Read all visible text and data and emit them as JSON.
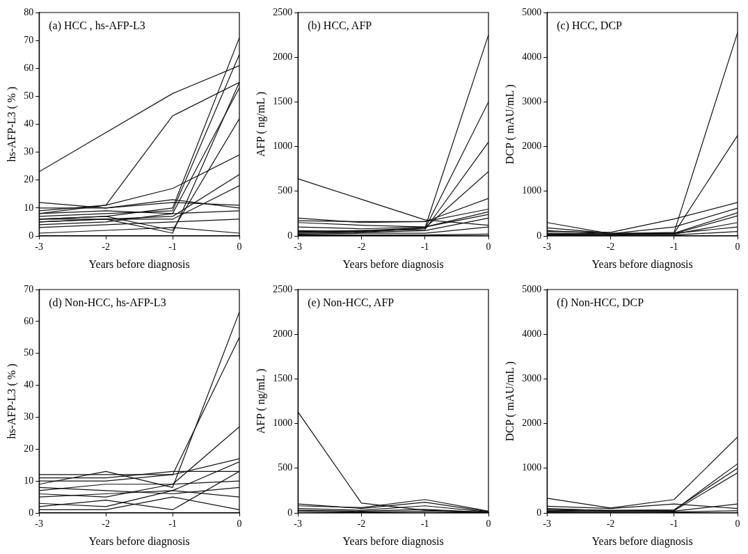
{
  "chart_data": [
    {
      "type": "line",
      "title": "(a) HCC , hs-AFP-L3",
      "xlabel": "Years before diagnosis",
      "ylabel": "hs-AFP-L3 ( % )",
      "x": [
        -3,
        -2,
        -1,
        0
      ],
      "xlim": [
        -3,
        0
      ],
      "xticks": [
        -3,
        -2,
        -1,
        0
      ],
      "ylim": [
        0,
        80
      ],
      "yticks": [
        0,
        10,
        20,
        30,
        40,
        50,
        60,
        70,
        80
      ],
      "grid": false,
      "legend": false,
      "marker": "none",
      "line_style": "solid",
      "series": [
        {
          "color": "#111111",
          "values": [
            9,
            11,
            43,
            55
          ]
        },
        {
          "color": "#111111",
          "values": [
            23,
            37,
            51,
            61
          ]
        },
        {
          "color": "#111111",
          "values": [
            8,
            11,
            17,
            29
          ]
        },
        {
          "color": "#111111",
          "values": [
            6,
            7,
            10,
            71
          ]
        },
        {
          "color": "#111111",
          "values": [
            7,
            8,
            9,
            65
          ]
        },
        {
          "color": "#111111",
          "values": [
            5,
            6,
            1,
            55
          ]
        },
        {
          "color": "#111111",
          "values": [
            4,
            5,
            8,
            53
          ]
        },
        {
          "color": "#111111",
          "values": [
            6,
            7,
            2,
            42
          ]
        },
        {
          "color": "#111111",
          "values": [
            5,
            6,
            7,
            22
          ]
        },
        {
          "color": "#111111",
          "values": [
            6,
            6,
            6,
            18
          ]
        },
        {
          "color": "#111111",
          "values": [
            10,
            10,
            12,
            11
          ]
        },
        {
          "color": "#111111",
          "values": [
            3,
            4,
            5,
            6
          ]
        },
        {
          "color": "#111111",
          "values": [
            8,
            9,
            8,
            9
          ]
        },
        {
          "color": "#111111",
          "values": [
            1,
            2,
            3,
            1
          ]
        },
        {
          "color": "#111111",
          "values": [
            12,
            10,
            13,
            10
          ]
        }
      ]
    },
    {
      "type": "line",
      "title": "(b) HCC, AFP",
      "xlabel": "Years before diagnosis",
      "ylabel": "AFP ( ng/mL )",
      "x": [
        -3,
        -2,
        -1,
        0
      ],
      "xlim": [
        -3,
        0
      ],
      "xticks": [
        -3,
        -2,
        -1,
        0
      ],
      "ylim": [
        0,
        2500
      ],
      "yticks": [
        0,
        500,
        1000,
        1500,
        2000,
        2500
      ],
      "grid": false,
      "legend": false,
      "marker": "none",
      "line_style": "solid",
      "series": [
        {
          "color": "#111111",
          "values": [
            640,
            410,
            180,
            120
          ]
        },
        {
          "color": "#111111",
          "values": [
            50,
            60,
            90,
            2250
          ]
        },
        {
          "color": "#111111",
          "values": [
            60,
            50,
            80,
            1500
          ]
        },
        {
          "color": "#111111",
          "values": [
            40,
            60,
            70,
            1050
          ]
        },
        {
          "color": "#111111",
          "values": [
            30,
            40,
            90,
            720
          ]
        },
        {
          "color": "#111111",
          "values": [
            200,
            150,
            160,
            420
          ]
        },
        {
          "color": "#111111",
          "values": [
            170,
            160,
            160,
            300
          ]
        },
        {
          "color": "#111111",
          "values": [
            100,
            80,
            100,
            270
          ]
        },
        {
          "color": "#111111",
          "values": [
            150,
            120,
            100,
            240
          ]
        },
        {
          "color": "#111111",
          "values": [
            50,
            40,
            60,
            200
          ]
        },
        {
          "color": "#111111",
          "values": [
            20,
            30,
            30,
            100
          ]
        },
        {
          "color": "#111111",
          "values": [
            10,
            10,
            10,
            20
          ]
        }
      ]
    },
    {
      "type": "line",
      "title": "(c) HCC, DCP",
      "xlabel": "Years before diagnosis",
      "ylabel": "DCP ( mAU/mL )",
      "x": [
        -3,
        -2,
        -1,
        0
      ],
      "xlim": [
        -3,
        0
      ],
      "xticks": [
        -3,
        -2,
        -1,
        0
      ],
      "ylim": [
        0,
        5000
      ],
      "yticks": [
        0,
        1000,
        2000,
        3000,
        4000,
        5000
      ],
      "grid": false,
      "legend": false,
      "marker": "none",
      "line_style": "solid",
      "series": [
        {
          "color": "#111111",
          "values": [
            300,
            50,
            80,
            4550
          ]
        },
        {
          "color": "#111111",
          "values": [
            180,
            60,
            60,
            2250
          ]
        },
        {
          "color": "#111111",
          "values": [
            100,
            80,
            380,
            750
          ]
        },
        {
          "color": "#111111",
          "values": [
            60,
            50,
            200,
            620
          ]
        },
        {
          "color": "#111111",
          "values": [
            40,
            30,
            60,
            520
          ]
        },
        {
          "color": "#111111",
          "values": [
            30,
            20,
            50,
            450
          ]
        },
        {
          "color": "#111111",
          "values": [
            20,
            30,
            40,
            300
          ]
        },
        {
          "color": "#111111",
          "values": [
            120,
            50,
            60,
            200
          ]
        },
        {
          "color": "#111111",
          "values": [
            10,
            10,
            20,
            100
          ]
        }
      ]
    },
    {
      "type": "line",
      "title": "(d) Non-HCC, hs-AFP-L3",
      "xlabel": "Years before diagnosis",
      "ylabel": "hs-AFP-L3 ( % )",
      "x": [
        -3,
        -2,
        -1,
        0
      ],
      "xlim": [
        -3,
        0
      ],
      "xticks": [
        -3,
        -2,
        -1,
        0
      ],
      "ylim": [
        0,
        70
      ],
      "yticks": [
        0,
        10,
        20,
        30,
        40,
        50,
        60,
        70
      ],
      "grid": false,
      "legend": false,
      "marker": "none",
      "line_style": "solid",
      "series": [
        {
          "color": "#111111",
          "values": [
            12,
            12,
            12,
            55
          ]
        },
        {
          "color": "#111111",
          "values": [
            9,
            13,
            8,
            63
          ]
        },
        {
          "color": "#111111",
          "values": [
            7,
            9,
            9,
            27
          ]
        },
        {
          "color": "#111111",
          "values": [
            10,
            10,
            12,
            17
          ]
        },
        {
          "color": "#111111",
          "values": [
            5,
            6,
            7,
            16
          ]
        },
        {
          "color": "#111111",
          "values": [
            2,
            4,
            1,
            13
          ]
        },
        {
          "color": "#111111",
          "values": [
            1,
            1,
            5,
            1
          ]
        },
        {
          "color": "#111111",
          "values": [
            6,
            5,
            9,
            10
          ]
        },
        {
          "color": "#111111",
          "values": [
            3,
            2,
            7,
            5
          ]
        },
        {
          "color": "#111111",
          "values": [
            8,
            7,
            6,
            8
          ]
        },
        {
          "color": "#111111",
          "values": [
            11,
            11,
            13,
            13
          ]
        }
      ]
    },
    {
      "type": "line",
      "title": "(e) Non-HCC, AFP",
      "xlabel": "Years before diagnosis",
      "ylabel": "AFP ( ng/mL )",
      "x": [
        -3,
        -2,
        -1,
        0
      ],
      "xlim": [
        -3,
        0
      ],
      "xticks": [
        -3,
        -2,
        -1,
        0
      ],
      "ylim": [
        0,
        2500
      ],
      "yticks": [
        0,
        500,
        1000,
        1500,
        2000,
        2500
      ],
      "grid": false,
      "legend": false,
      "marker": "none",
      "line_style": "solid",
      "series": [
        {
          "color": "#111111",
          "values": [
            1130,
            110,
            30,
            10
          ]
        },
        {
          "color": "#111111",
          "values": [
            80,
            60,
            150,
            20
          ]
        },
        {
          "color": "#111111",
          "values": [
            100,
            50,
            120,
            15
          ]
        },
        {
          "color": "#111111",
          "values": [
            50,
            30,
            80,
            10
          ]
        },
        {
          "color": "#111111",
          "values": [
            30,
            20,
            40,
            5
          ]
        },
        {
          "color": "#111111",
          "values": [
            20,
            10,
            20,
            5
          ]
        }
      ]
    },
    {
      "type": "line",
      "title": "(f) Non-HCC, DCP",
      "xlabel": "Years before diagnosis",
      "ylabel": "DCP ( mAU/mL )",
      "x": [
        -3,
        -2,
        -1,
        0
      ],
      "xlim": [
        -3,
        0
      ],
      "xticks": [
        -3,
        -2,
        -1,
        0
      ],
      "ylim": [
        0,
        5000
      ],
      "yticks": [
        0,
        1000,
        2000,
        3000,
        4000,
        5000
      ],
      "grid": false,
      "legend": false,
      "marker": "none",
      "line_style": "solid",
      "series": [
        {
          "color": "#111111",
          "values": [
            330,
            110,
            300,
            1700
          ]
        },
        {
          "color": "#111111",
          "values": [
            100,
            50,
            60,
            1100
          ]
        },
        {
          "color": "#111111",
          "values": [
            80,
            60,
            70,
            1000
          ]
        },
        {
          "color": "#111111",
          "values": [
            60,
            40,
            50,
            900
          ]
        },
        {
          "color": "#111111",
          "values": [
            150,
            100,
            200,
            100
          ]
        },
        {
          "color": "#111111",
          "values": [
            40,
            30,
            40,
            200
          ]
        },
        {
          "color": "#111111",
          "values": [
            20,
            10,
            20,
            50
          ]
        }
      ]
    }
  ]
}
